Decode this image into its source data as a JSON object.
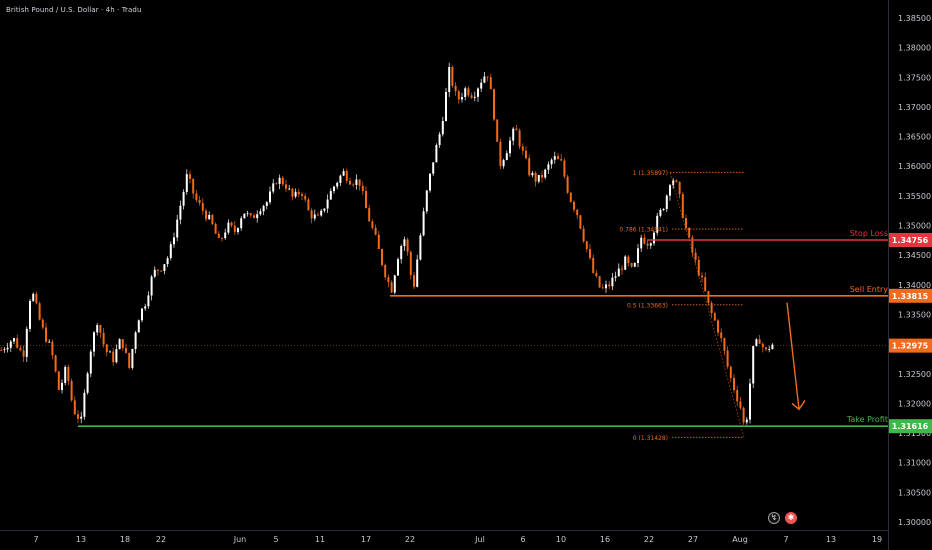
{
  "header": {
    "symbol_title": "British Pound / U.S. Dollar · 4h · Tradu"
  },
  "chart_data": {
    "type": "candlestick",
    "title": "British Pound / U.S. Dollar · 4h · Tradu",
    "ylim": [
      1.2985,
      1.387
    ],
    "y_ticks": [
      "1.38500",
      "1.38000",
      "1.37500",
      "1.37000",
      "1.36500",
      "1.36000",
      "1.35500",
      "1.35000",
      "1.34500",
      "1.34000",
      "1.33500",
      "1.33000",
      "1.32500",
      "1.32000",
      "1.31500",
      "1.31000",
      "1.30500",
      "1.30000"
    ],
    "x_ticks": [
      "7",
      "13",
      "18",
      "22",
      "Jun",
      "5",
      "11",
      "17",
      "22",
      "Jul",
      "6",
      "10",
      "16",
      "22",
      "27",
      "Aug",
      "7",
      "13",
      "19"
    ],
    "grid": false,
    "current_price": "1.32975",
    "price_path": [
      [
        0,
        1.329
      ],
      [
        12,
        1.331
      ],
      [
        22,
        1.328
      ],
      [
        30,
        1.3395
      ],
      [
        40,
        1.333
      ],
      [
        50,
        1.329
      ],
      [
        58,
        1.322
      ],
      [
        65,
        1.326
      ],
      [
        72,
        1.319
      ],
      [
        80,
        1.317
      ],
      [
        88,
        1.328
      ],
      [
        96,
        1.334
      ],
      [
        104,
        1.329
      ],
      [
        112,
        1.3275
      ],
      [
        120,
        1.331
      ],
      [
        128,
        1.326
      ],
      [
        136,
        1.334
      ],
      [
        144,
        1.337
      ],
      [
        152,
        1.342
      ],
      [
        160,
        1.343
      ],
      [
        168,
        1.345
      ],
      [
        176,
        1.351
      ],
      [
        186,
        1.3585
      ],
      [
        194,
        1.3545
      ],
      [
        202,
        1.3525
      ],
      [
        210,
        1.3505
      ],
      [
        218,
        1.347
      ],
      [
        226,
        1.35
      ],
      [
        234,
        1.349
      ],
      [
        242,
        1.3525
      ],
      [
        250,
        1.351
      ],
      [
        258,
        1.353
      ],
      [
        266,
        1.354
      ],
      [
        276,
        1.358
      ],
      [
        284,
        1.357
      ],
      [
        292,
        1.3545
      ],
      [
        300,
        1.356
      ],
      [
        308,
        1.352
      ],
      [
        318,
        1.351
      ],
      [
        326,
        1.3545
      ],
      [
        334,
        1.357
      ],
      [
        342,
        1.359
      ],
      [
        350,
        1.3575
      ],
      [
        358,
        1.3575
      ],
      [
        366,
        1.352
      ],
      [
        374,
        1.348
      ],
      [
        382,
        1.343
      ],
      [
        390,
        1.339
      ],
      [
        398,
        1.346
      ],
      [
        404,
        1.348
      ],
      [
        412,
        1.339
      ],
      [
        418,
        1.347
      ],
      [
        426,
        1.356
      ],
      [
        432,
        1.361
      ],
      [
        440,
        1.3665
      ],
      [
        448,
        1.376
      ],
      [
        456,
        1.371
      ],
      [
        464,
        1.373
      ],
      [
        472,
        1.372
      ],
      [
        480,
        1.3745
      ],
      [
        486,
        1.376
      ],
      [
        492,
        1.37
      ],
      [
        498,
        1.36
      ],
      [
        506,
        1.363
      ],
      [
        514,
        1.3665
      ],
      [
        520,
        1.363
      ],
      [
        528,
        1.359
      ],
      [
        536,
        1.3575
      ],
      [
        544,
        1.359
      ],
      [
        552,
        1.3615
      ],
      [
        560,
        1.3605
      ],
      [
        568,
        1.355
      ],
      [
        576,
        1.352
      ],
      [
        584,
        1.347
      ],
      [
        592,
        1.342
      ],
      [
        600,
        1.339
      ],
      [
        608,
        1.34
      ],
      [
        616,
        1.342
      ],
      [
        624,
        1.344
      ],
      [
        632,
        1.342
      ],
      [
        640,
        1.348
      ],
      [
        648,
        1.347
      ],
      [
        656,
        1.351
      ],
      [
        664,
        1.354
      ],
      [
        670,
        1.3585
      ],
      [
        676,
        1.3565
      ],
      [
        684,
        1.35
      ],
      [
        690,
        1.346
      ],
      [
        696,
        1.343
      ],
      [
        702,
        1.34
      ],
      [
        708,
        1.336
      ],
      [
        716,
        1.333
      ],
      [
        722,
        1.3295
      ],
      [
        728,
        1.325
      ],
      [
        734,
        1.322
      ],
      [
        740,
        1.319
      ],
      [
        744,
        1.315
      ],
      [
        748,
        1.322
      ],
      [
        752,
        1.329
      ],
      [
        758,
        1.331
      ],
      [
        764,
        1.3285
      ],
      [
        770,
        1.33
      ],
      [
        774,
        1.32975
      ]
    ],
    "annotations": {
      "lines": [
        {
          "label": "Stop Loss",
          "price": "1.34756",
          "value": 1.34756,
          "color": "#e5353f"
        },
        {
          "label": "Sell Entry",
          "price": "1.33815",
          "value": 1.33815,
          "color": "#f26a1b"
        },
        {
          "label": "Take Profit",
          "price": "1.31616",
          "value": 1.31616,
          "color": "#3fb84a"
        }
      ],
      "fib_levels": [
        {
          "label": "1 (1.35897)",
          "value": 1.35897
        },
        {
          "label": "0.786 (1.34941)",
          "value": 1.34941
        },
        {
          "label": "0.5 (1.33663)",
          "value": 1.33663
        },
        {
          "label": "0 (1.31428)",
          "value": 1.31428
        }
      ]
    }
  },
  "axis_icons": [
    "lightning-icon",
    "economic-event-icon"
  ],
  "colors": {
    "up": "#ffffff",
    "down": "#f26a1b",
    "stop_loss": "#e5353f",
    "sell_entry": "#f26a1b",
    "take_profit": "#3fb84a",
    "current": "#f26a1b",
    "fib": "#f26a1b",
    "axis_text": "#c5c8ce"
  }
}
